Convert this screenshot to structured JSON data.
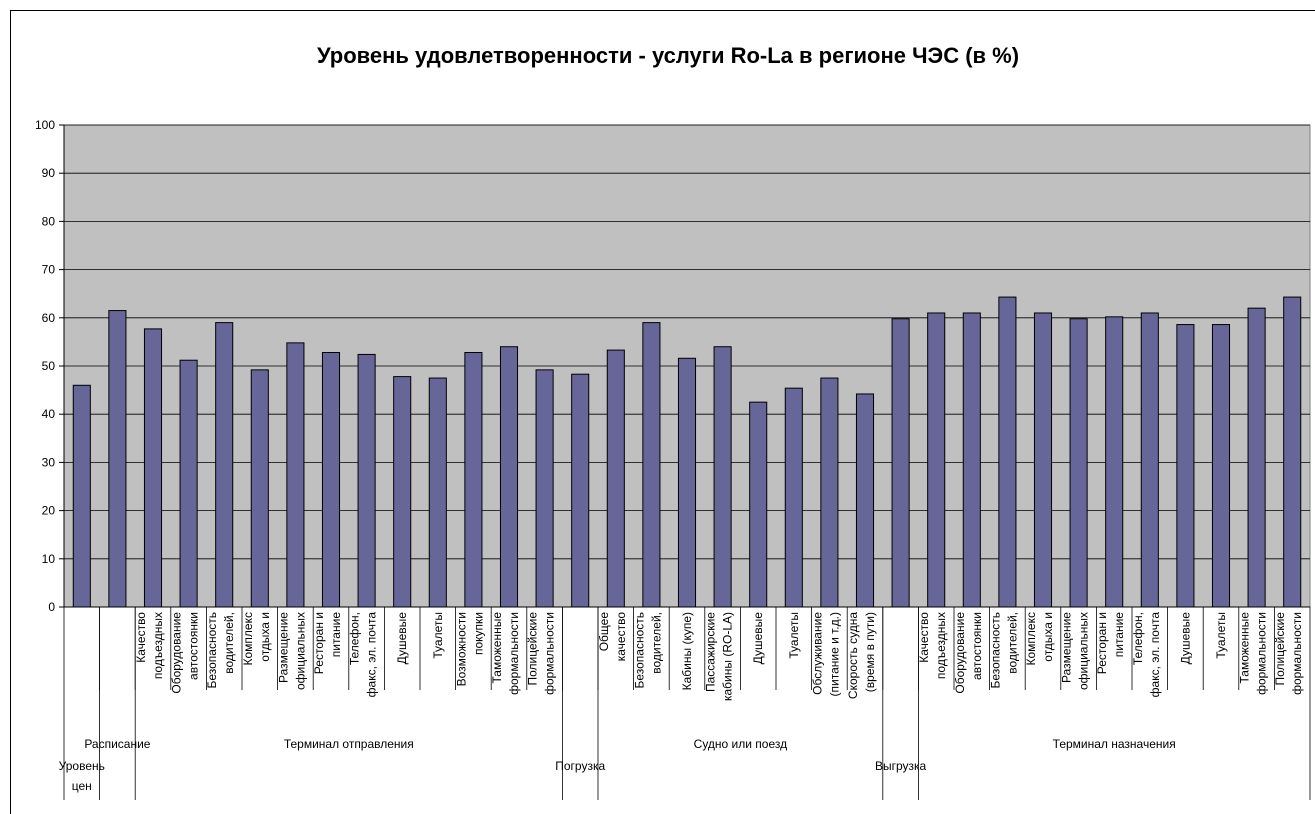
{
  "chart_data": {
    "type": "bar",
    "title": "Уровень удовлетворенности - услуги Ro-La в регионе ЧЭС (в %)",
    "categories": [
      null,
      null,
      [
        "Качество",
        "подъездных"
      ],
      [
        "Оборудование",
        "автостоянки"
      ],
      [
        "Безопасность",
        "водителей,"
      ],
      [
        "Комплекс",
        "отдыха и"
      ],
      [
        "Размещение",
        "официальных"
      ],
      [
        "Ресторан и",
        "питание"
      ],
      [
        "Телефон,",
        "факс, эл. почта"
      ],
      [
        "Душевые"
      ],
      [
        "Туалеты"
      ],
      [
        "Возможности",
        "покупки"
      ],
      [
        "Таможенные",
        "формальности"
      ],
      [
        "Полицейские",
        "формальности"
      ],
      null,
      [
        "Общее",
        "качество"
      ],
      [
        "Безопасность",
        "водителей,"
      ],
      [
        "Кабины (купе)"
      ],
      [
        "Пассажирские",
        "кабины (RO-LA)"
      ],
      [
        "Душевые"
      ],
      [
        "Туалеты"
      ],
      [
        "Обслуживание",
        "(питание и т.д.)"
      ],
      [
        "Скорость судна",
        "(время в пути)"
      ],
      null,
      [
        "Качество",
        "подъездных"
      ],
      [
        "Оборудование",
        "автостоянки"
      ],
      [
        "Безопасность",
        "водителей,"
      ],
      [
        "Комплекс",
        "отдыха и"
      ],
      [
        "Размещение",
        "официальных"
      ],
      [
        "Ресторан и",
        "питание"
      ],
      [
        "Телефон,",
        "факс, эл. почта"
      ],
      [
        "Душевые"
      ],
      [
        "Туалеты"
      ],
      [
        "Таможенные",
        "формальности"
      ],
      [
        "Полицейские",
        "формальности"
      ]
    ],
    "groups": [
      {
        "name": [
          "Уровень",
          "цен"
        ],
        "start": 0,
        "end": 0
      },
      {
        "name": [
          "Расписание"
        ],
        "start": 1,
        "end": 1
      },
      {
        "name": [
          "Терминал отправления"
        ],
        "start": 2,
        "end": 13
      },
      {
        "name": [
          "Погрузка"
        ],
        "start": 14,
        "end": 14
      },
      {
        "name": [
          "Судно или поезд"
        ],
        "start": 15,
        "end": 22
      },
      {
        "name": [
          "Выгрузка"
        ],
        "start": 23,
        "end": 23
      },
      {
        "name": [
          "Терминал назначения"
        ],
        "start": 24,
        "end": 34
      }
    ],
    "values": [
      46,
      61.5,
      57.7,
      51.2,
      59,
      49.2,
      54.8,
      52.8,
      52.4,
      47.8,
      47.5,
      52.8,
      54,
      49.2,
      48.3,
      53.3,
      59,
      51.6,
      54,
      42.5,
      45.4,
      47.5,
      44.2,
      59.8,
      61,
      61,
      64.3,
      61,
      59.8,
      60.2,
      61,
      58.6,
      58.6,
      62,
      64.3
    ],
    "color": "#666699",
    "ylim": [
      0,
      100
    ],
    "yticks": [
      0,
      10,
      20,
      30,
      40,
      50,
      60,
      70,
      80,
      90,
      100
    ],
    "grid": true
  }
}
